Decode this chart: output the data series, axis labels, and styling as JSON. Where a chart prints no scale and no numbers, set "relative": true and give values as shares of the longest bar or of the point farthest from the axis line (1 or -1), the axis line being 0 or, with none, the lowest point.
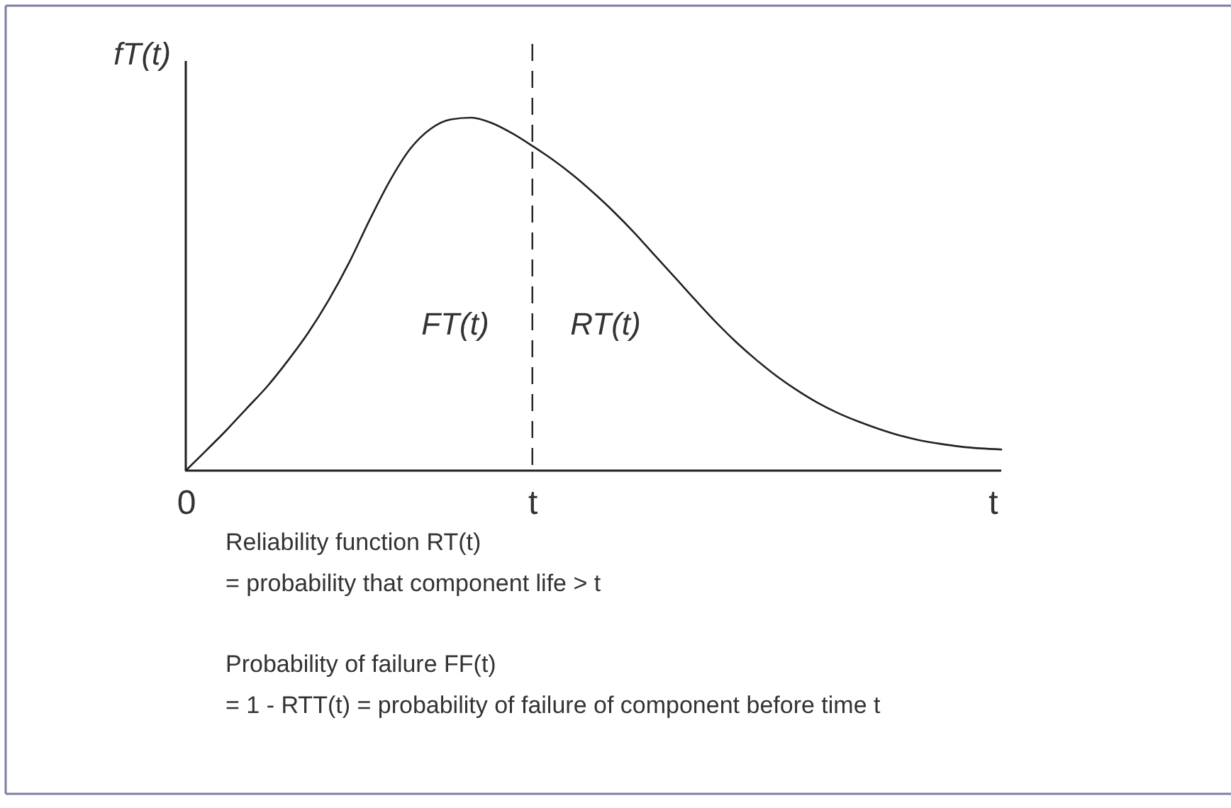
{
  "chart_data": {
    "type": "line",
    "relative": true,
    "ylabel": "fT(t)",
    "xlabel": "t",
    "color": "#222222",
    "categories": [
      "0",
      null,
      null,
      null,
      null,
      null,
      null,
      null,
      null,
      null,
      null,
      null,
      null,
      null,
      null,
      null,
      null,
      "t",
      null,
      null,
      null,
      null,
      null,
      null,
      null,
      null,
      null,
      null,
      null,
      null,
      null,
      null,
      null,
      null,
      null,
      null,
      null,
      null,
      null,
      null,
      null
    ],
    "values": [
      0,
      0.057,
      0.115,
      0.177,
      0.239,
      0.311,
      0.39,
      0.482,
      0.588,
      0.708,
      0.82,
      0.911,
      0.968,
      0.995,
      1.0,
      0.985,
      0.956,
      0.92,
      0.881,
      0.837,
      0.787,
      0.733,
      0.674,
      0.61,
      0.547,
      0.483,
      0.421,
      0.364,
      0.313,
      0.267,
      0.227,
      0.192,
      0.163,
      0.139,
      0.118,
      0.1,
      0.086,
      0.076,
      0.068,
      0.063,
      0.06
    ],
    "ref_lines": [
      {
        "axis": "x",
        "value": "t",
        "line_style": "dashed",
        "color": "#222222"
      }
    ],
    "annotations": [
      "FT(t)",
      "RT(t)",
      "Reliability function RT(t)\n= probability that component life > t",
      "Probability of failure FF(t)\n= 1 - RTT(t) = probability of failure of component before time t"
    ]
  }
}
